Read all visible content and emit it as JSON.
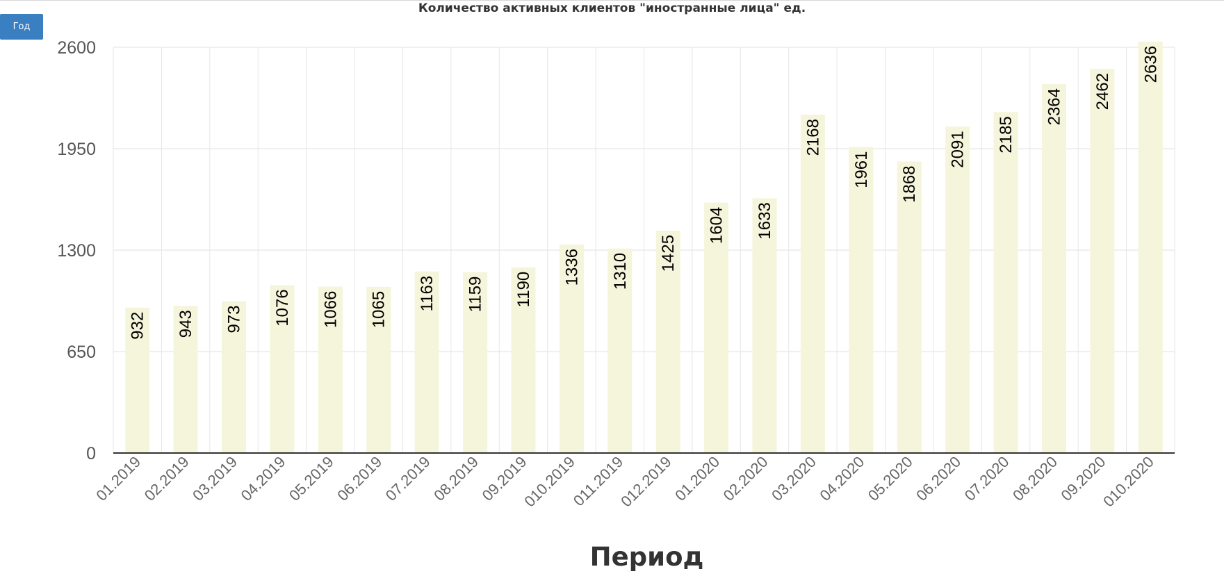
{
  "controls": {
    "period_button": "Год"
  },
  "chart_data": {
    "type": "bar",
    "title": "Количество активных клиентов \"иностранные лица\" ед.",
    "xlabel": "Период",
    "ylabel": "",
    "categories": [
      "01.2019",
      "02.2019",
      "03.2019",
      "04.2019",
      "05.2019",
      "06.2019",
      "07.2019",
      "08.2019",
      "09.2019",
      "010.2019",
      "011.2019",
      "012.2019",
      "01.2020",
      "02.2020",
      "03.2020",
      "04.2020",
      "05.2020",
      "06.2020",
      "07.2020",
      "08.2020",
      "09.2020",
      "010.2020"
    ],
    "values": [
      932,
      943,
      973,
      1076,
      1066,
      1065,
      1163,
      1159,
      1190,
      1336,
      1310,
      1425,
      1604,
      1633,
      2168,
      1961,
      1868,
      2091,
      2185,
      2364,
      2462,
      2636
    ],
    "yticks": [
      0,
      650,
      1300,
      1950,
      2600
    ],
    "ylim": [
      0,
      2600
    ],
    "grid": true,
    "bar_color": "#f5f5dc",
    "legend": "none"
  }
}
